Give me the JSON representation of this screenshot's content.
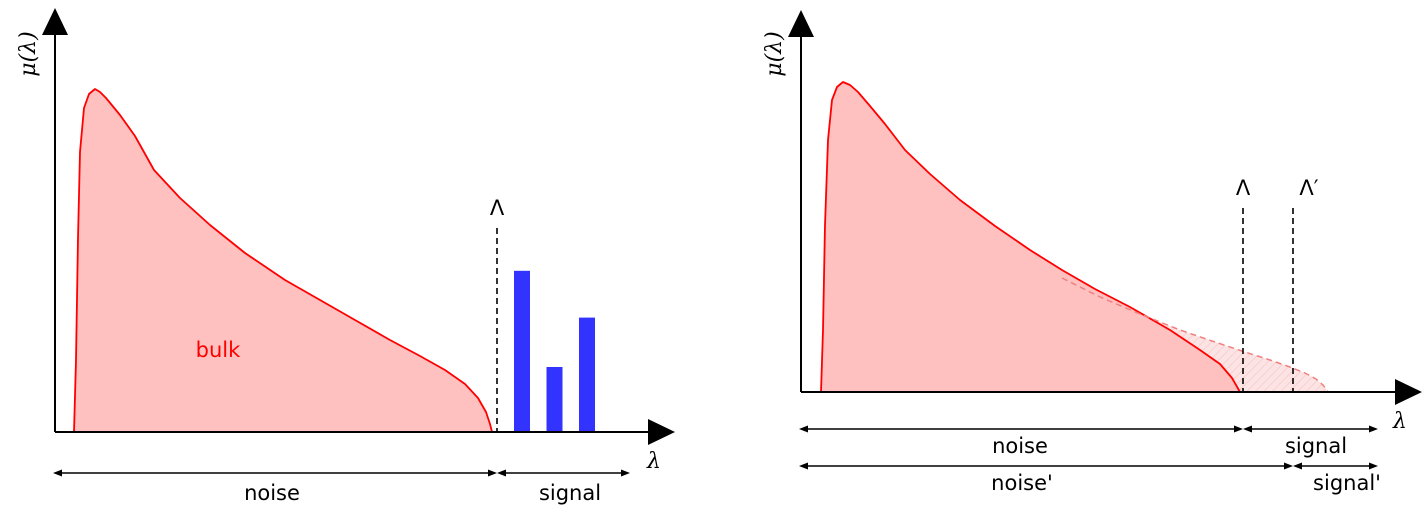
{
  "colors": {
    "bulk_fill": "#ffc0c0",
    "bulk_line": "#ff0000",
    "signal_bars": "#3333ff",
    "ghost_fill": "#fde4e4",
    "ghost_line": "#f08080",
    "axes": "#000000"
  },
  "left_panel": {
    "y_axis_label": "μ(λ)",
    "x_axis_label": "λ",
    "threshold_label": "Λ",
    "bulk_label": "bulk",
    "noise_label": "noise",
    "signal_label": "signal",
    "signal_spikes": [
      0.62,
      0.25,
      0.44
    ]
  },
  "right_panel": {
    "y_axis_label": "μ(λ)",
    "x_axis_label": "λ",
    "threshold_label": "Λ",
    "threshold_prime_label": "Λ′",
    "noise_label": "noise",
    "signal_label": "signal",
    "noise_prime_label": "noise'",
    "signal_prime_label": "signal'"
  }
}
